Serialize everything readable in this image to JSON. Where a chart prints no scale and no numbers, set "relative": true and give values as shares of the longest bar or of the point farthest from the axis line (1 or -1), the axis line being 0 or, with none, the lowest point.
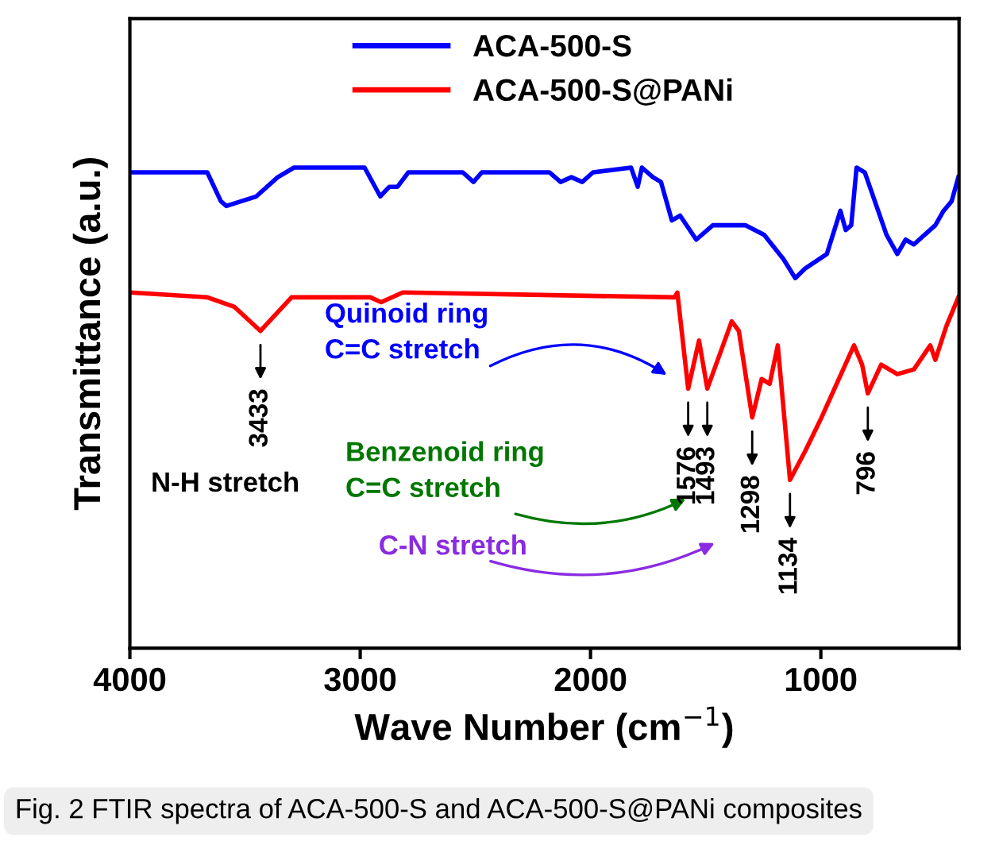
{
  "chart_data": {
    "type": "line",
    "relative": true,
    "xlabel": "Wave Number (cm$^{−1}$)",
    "ylabel": "Transmittance (a.u.)",
    "xlim": [
      4000,
      400
    ],
    "xticks": [
      4000,
      3000,
      2000,
      1000
    ],
    "legend": "top",
    "grid": false,
    "marker": "none",
    "line_style": "solid",
    "tick_labels": "x",
    "series": [
      {
        "name": "ACA-500-S",
        "color": "#0000ff",
        "x": [
          4000,
          3664,
          3605,
          3581,
          3451,
          3358,
          3287,
          2981,
          2913,
          2873,
          2838,
          2791,
          2555,
          2508,
          2472,
          2178,
          2130,
          2083,
          2036,
          1989,
          1824,
          1795,
          1777,
          1729,
          1694,
          1647,
          1611,
          1541,
          1469,
          1328,
          1246,
          1163,
          1111,
          1068,
          974,
          915,
          892,
          868,
          845,
          809,
          715,
          668,
          632,
          596,
          503,
          467,
          432,
          403
        ],
        "values": [
          0.99,
          0.99,
          0.93,
          0.92,
          0.94,
          0.98,
          1.0,
          1.0,
          0.94,
          0.96,
          0.96,
          0.99,
          0.99,
          0.97,
          0.99,
          0.99,
          0.97,
          0.98,
          0.97,
          0.99,
          1.0,
          0.96,
          1.0,
          0.98,
          0.97,
          0.89,
          0.9,
          0.85,
          0.88,
          0.88,
          0.86,
          0.81,
          0.77,
          0.79,
          0.82,
          0.91,
          0.87,
          0.88,
          1.0,
          0.99,
          0.86,
          0.82,
          0.85,
          0.84,
          0.88,
          0.91,
          0.93,
          0.98
        ]
      },
      {
        "name": "ACA-500-S@PANi",
        "color": "#ff0000",
        "x": [
          4000,
          3664,
          3546,
          3433,
          3298,
          2956,
          2909,
          2815,
          1635,
          1623,
          1576,
          1529,
          1493,
          1387,
          1356,
          1298,
          1257,
          1222,
          1187,
          1134,
          1068,
          997,
          856,
          821,
          796,
          738,
          668,
          596,
          525,
          503,
          455,
          403
        ],
        "values": [
          0.74,
          0.73,
          0.71,
          0.66,
          0.73,
          0.73,
          0.72,
          0.74,
          0.73,
          0.74,
          0.54,
          0.64,
          0.54,
          0.68,
          0.66,
          0.48,
          0.56,
          0.55,
          0.63,
          0.35,
          0.41,
          0.48,
          0.63,
          0.59,
          0.53,
          0.59,
          0.57,
          0.58,
          0.63,
          0.6,
          0.67,
          0.73
        ]
      }
    ],
    "annotations": [
      {
        "text": "3433",
        "x": 3433,
        "y": 0.66
      },
      {
        "text": "1576",
        "x": 1576,
        "y": 0.54
      },
      {
        "text": "1493",
        "x": 1493,
        "y": 0.54
      },
      {
        "text": "1298",
        "x": 1298,
        "y": 0.48
      },
      {
        "text": "1134",
        "x": 1134,
        "y": 0.35
      },
      {
        "text": "796",
        "x": 796,
        "y": 0.53
      },
      "N-H stretch",
      "Quinoid ring\nC=C stretch",
      "Benzenoid ring\nC=C stretch",
      "C-N stretch",
      "Fig. 2 FTIR spectra of ACA-500-S and ACA-500-S@PANi composites"
    ]
  }
}
